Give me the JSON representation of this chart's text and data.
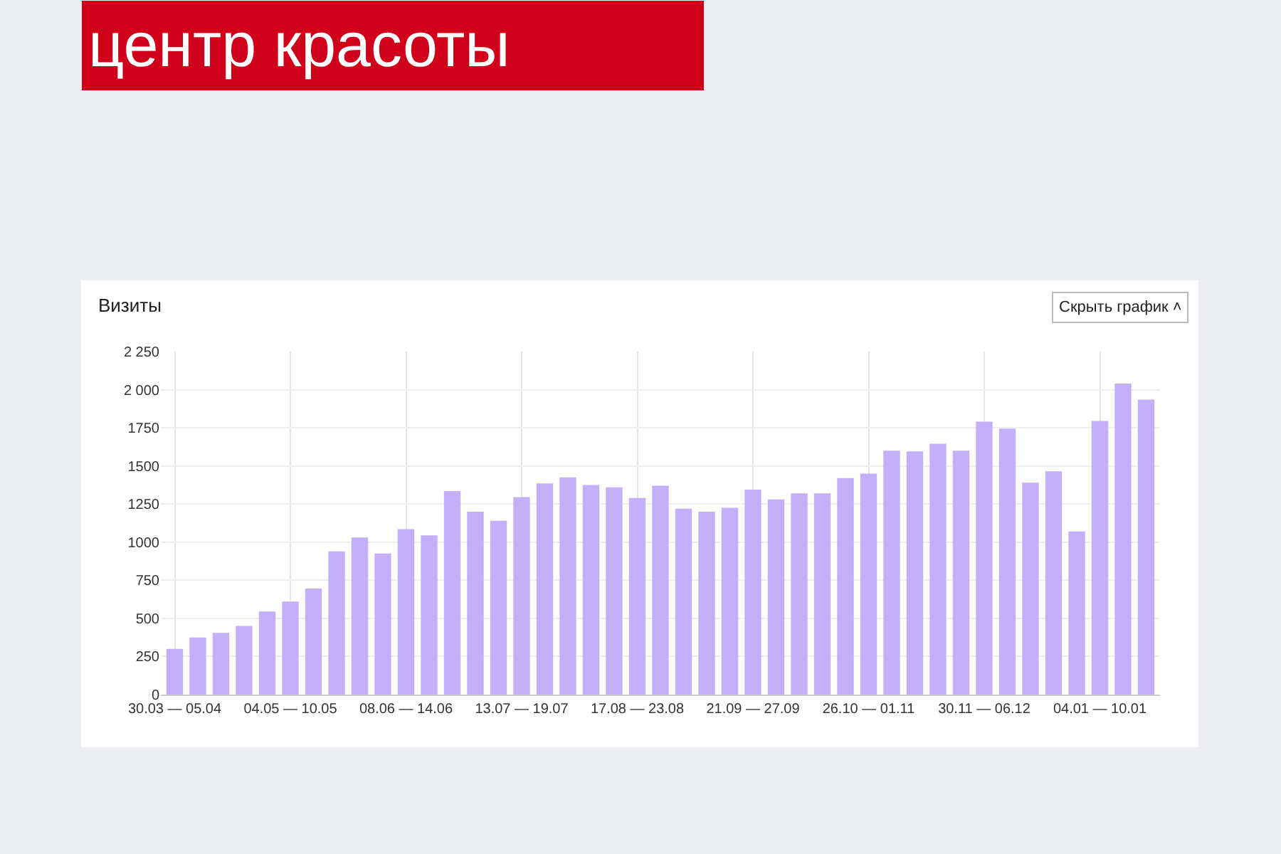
{
  "chart_data": {
    "type": "bar",
    "title": "центр красоты",
    "subtitle": "Визиты",
    "annotations": [
      "Скрыть график ˄"
    ],
    "categories": [
      "30.03 — 05.04",
      null,
      null,
      null,
      null,
      "04.05 — 10.05",
      null,
      null,
      null,
      null,
      "08.06 — 14.06",
      null,
      null,
      null,
      null,
      "13.07 — 19.07",
      null,
      null,
      null,
      null,
      "17.08 — 23.08",
      null,
      null,
      null,
      null,
      "21.09 — 27.09",
      null,
      null,
      null,
      null,
      "26.10 — 01.11",
      null,
      null,
      null,
      null,
      "30.11 — 06.12",
      null,
      null,
      null,
      null,
      "04.01 — 10.01",
      null,
      null
    ],
    "values": [
      300,
      375,
      405,
      450,
      545,
      610,
      695,
      940,
      1030,
      925,
      1085,
      1045,
      1335,
      1200,
      1140,
      1295,
      1385,
      1425,
      1375,
      1360,
      1290,
      1370,
      1220,
      1200,
      1225,
      1345,
      1280,
      1320,
      1320,
      1420,
      1450,
      1600,
      1595,
      1645,
      1600,
      1790,
      1745,
      1390,
      1465,
      1070,
      1795,
      2040,
      1935
    ],
    "color": "#c4b0f9",
    "ylim": [
      0,
      2250
    ],
    "yticks": [
      0,
      250,
      500,
      750,
      1000,
      1250,
      1500,
      1750,
      {
        "value": 2000,
        "label": "2 000"
      },
      {
        "value": 2250,
        "label": "2 250"
      }
    ],
    "grid": true,
    "legend": false
  }
}
